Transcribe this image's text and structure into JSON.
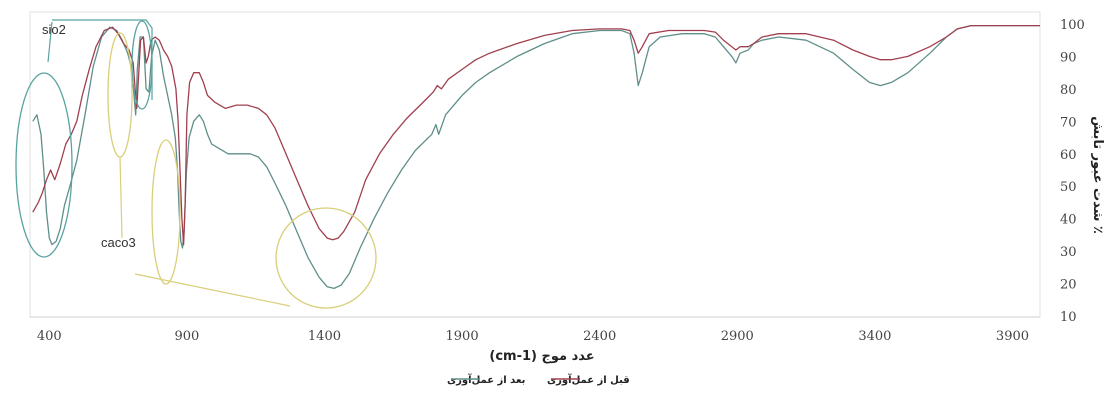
{
  "chart_data": {
    "type": "line",
    "xlabel": "عدد موج (cm-1)",
    "ylabel": "٪ شدت عبور تابش",
    "xlim": [
      330,
      4000
    ],
    "ylim": [
      10,
      100
    ],
    "xticks": [
      400,
      900,
      1400,
      1900,
      2400,
      2900,
      3400,
      3900
    ],
    "yticks": [
      10,
      20,
      30,
      40,
      50,
      60,
      70,
      80,
      90,
      100
    ],
    "grid": false,
    "legend_position": "bottom",
    "series": [
      {
        "name": "قبل از عمل‌آوری",
        "color": "#a0404f",
        "points": [
          [
            340,
            42
          ],
          [
            360,
            45
          ],
          [
            375,
            48
          ],
          [
            390,
            52
          ],
          [
            405,
            55
          ],
          [
            420,
            52
          ],
          [
            440,
            57
          ],
          [
            460,
            63
          ],
          [
            480,
            66
          ],
          [
            500,
            70
          ],
          [
            520,
            78
          ],
          [
            545,
            86
          ],
          [
            570,
            93
          ],
          [
            600,
            98
          ],
          [
            630,
            99
          ],
          [
            650,
            97
          ],
          [
            670,
            94
          ],
          [
            690,
            92
          ],
          [
            705,
            88
          ],
          [
            712,
            80
          ],
          [
            718,
            74
          ],
          [
            724,
            83
          ],
          [
            732,
            95
          ],
          [
            742,
            96
          ],
          [
            752,
            88
          ],
          [
            760,
            90
          ],
          [
            770,
            95
          ],
          [
            785,
            96
          ],
          [
            800,
            95
          ],
          [
            815,
            92
          ],
          [
            830,
            90
          ],
          [
            845,
            87
          ],
          [
            860,
            80
          ],
          [
            868,
            70
          ],
          [
            875,
            55
          ],
          [
            882,
            40
          ],
          [
            888,
            32
          ],
          [
            894,
            45
          ],
          [
            900,
            72
          ],
          [
            910,
            82
          ],
          [
            925,
            85
          ],
          [
            945,
            85
          ],
          [
            960,
            82
          ],
          [
            975,
            78
          ],
          [
            1000,
            76
          ],
          [
            1040,
            74
          ],
          [
            1080,
            75
          ],
          [
            1120,
            75
          ],
          [
            1160,
            74
          ],
          [
            1190,
            72
          ],
          [
            1220,
            68
          ],
          [
            1260,
            60
          ],
          [
            1300,
            52
          ],
          [
            1340,
            44
          ],
          [
            1380,
            37
          ],
          [
            1410,
            34
          ],
          [
            1430,
            33.5
          ],
          [
            1450,
            34
          ],
          [
            1470,
            36
          ],
          [
            1510,
            42
          ],
          [
            1550,
            52
          ],
          [
            1600,
            60
          ],
          [
            1650,
            66
          ],
          [
            1700,
            71
          ],
          [
            1760,
            76
          ],
          [
            1795,
            79
          ],
          [
            1810,
            81
          ],
          [
            1825,
            80
          ],
          [
            1850,
            83
          ],
          [
            1900,
            86
          ],
          [
            1950,
            89
          ],
          [
            2000,
            91
          ],
          [
            2100,
            94
          ],
          [
            2200,
            96.5
          ],
          [
            2300,
            98
          ],
          [
            2400,
            98.5
          ],
          [
            2480,
            98.5
          ],
          [
            2510,
            98
          ],
          [
            2525,
            95
          ],
          [
            2540,
            91
          ],
          [
            2555,
            93
          ],
          [
            2580,
            97
          ],
          [
            2650,
            98
          ],
          [
            2780,
            98
          ],
          [
            2820,
            97.5
          ],
          [
            2850,
            95
          ],
          [
            2880,
            93
          ],
          [
            2895,
            92
          ],
          [
            2910,
            93
          ],
          [
            2940,
            93
          ],
          [
            2960,
            94
          ],
          [
            2990,
            96
          ],
          [
            3050,
            97
          ],
          [
            3150,
            97
          ],
          [
            3250,
            95
          ],
          [
            3320,
            92
          ],
          [
            3380,
            90
          ],
          [
            3420,
            89
          ],
          [
            3460,
            89
          ],
          [
            3520,
            90
          ],
          [
            3600,
            93
          ],
          [
            3660,
            96
          ],
          [
            3700,
            98.5
          ],
          [
            3750,
            99.5
          ],
          [
            3850,
            99.5
          ],
          [
            4000,
            99.5
          ]
        ]
      },
      {
        "name": "بعد از عمل‌آوری",
        "color": "#5f8f8a",
        "points": [
          [
            340,
            70
          ],
          [
            355,
            72
          ],
          [
            370,
            66
          ],
          [
            380,
            55
          ],
          [
            390,
            42
          ],
          [
            400,
            34
          ],
          [
            410,
            32
          ],
          [
            425,
            33
          ],
          [
            440,
            37
          ],
          [
            455,
            44
          ],
          [
            475,
            50
          ],
          [
            500,
            58
          ],
          [
            530,
            72
          ],
          [
            560,
            87
          ],
          [
            590,
            96
          ],
          [
            620,
            99
          ],
          [
            645,
            98
          ],
          [
            665,
            95
          ],
          [
            685,
            91
          ],
          [
            700,
            86
          ],
          [
            708,
            78
          ],
          [
            714,
            72
          ],
          [
            720,
            86
          ],
          [
            730,
            96
          ],
          [
            742,
            96
          ],
          [
            752,
            80
          ],
          [
            762,
            79
          ],
          [
            772,
            90
          ],
          [
            785,
            95
          ],
          [
            800,
            92
          ],
          [
            815,
            84
          ],
          [
            830,
            78
          ],
          [
            845,
            72
          ],
          [
            858,
            65
          ],
          [
            866,
            55
          ],
          [
            872,
            42
          ],
          [
            878,
            33
          ],
          [
            884,
            31
          ],
          [
            890,
            36
          ],
          [
            898,
            54
          ],
          [
            908,
            65
          ],
          [
            925,
            70
          ],
          [
            945,
            72
          ],
          [
            960,
            70
          ],
          [
            975,
            66
          ],
          [
            990,
            63
          ],
          [
            1010,
            62
          ],
          [
            1050,
            60
          ],
          [
            1090,
            60
          ],
          [
            1130,
            60
          ],
          [
            1160,
            59
          ],
          [
            1190,
            56
          ],
          [
            1220,
            51
          ],
          [
            1260,
            44
          ],
          [
            1300,
            36
          ],
          [
            1340,
            28
          ],
          [
            1380,
            22
          ],
          [
            1410,
            19
          ],
          [
            1435,
            18.5
          ],
          [
            1460,
            19.5
          ],
          [
            1490,
            23
          ],
          [
            1530,
            31
          ],
          [
            1580,
            40
          ],
          [
            1630,
            48
          ],
          [
            1680,
            55
          ],
          [
            1730,
            61
          ],
          [
            1790,
            66
          ],
          [
            1805,
            69
          ],
          [
            1815,
            66
          ],
          [
            1840,
            72
          ],
          [
            1900,
            78
          ],
          [
            1950,
            82
          ],
          [
            2000,
            85
          ],
          [
            2100,
            90
          ],
          [
            2200,
            94
          ],
          [
            2300,
            97
          ],
          [
            2400,
            98
          ],
          [
            2480,
            98
          ],
          [
            2510,
            97
          ],
          [
            2525,
            91
          ],
          [
            2540,
            81
          ],
          [
            2555,
            85
          ],
          [
            2580,
            93
          ],
          [
            2620,
            96
          ],
          [
            2700,
            97
          ],
          [
            2780,
            97
          ],
          [
            2820,
            96
          ],
          [
            2850,
            93
          ],
          [
            2880,
            90
          ],
          [
            2895,
            88
          ],
          [
            2910,
            91
          ],
          [
            2940,
            92
          ],
          [
            2960,
            94
          ],
          [
            2990,
            95
          ],
          [
            3050,
            96
          ],
          [
            3150,
            95
          ],
          [
            3250,
            91
          ],
          [
            3320,
            86
          ],
          [
            3380,
            82
          ],
          [
            3420,
            81
          ],
          [
            3460,
            82
          ],
          [
            3520,
            85
          ],
          [
            3600,
            91
          ],
          [
            3660,
            96
          ],
          [
            3700,
            98.5
          ],
          [
            3750,
            99.5
          ],
          [
            3850,
            99.5
          ],
          [
            4000,
            99.5
          ]
        ]
      }
    ],
    "annotations": [
      {
        "text": "sio2",
        "target": "band 330–500 cm-1"
      },
      {
        "text": "caco3",
        "target": "bands near 712, 875 and 1430 cm-1"
      }
    ]
  }
}
